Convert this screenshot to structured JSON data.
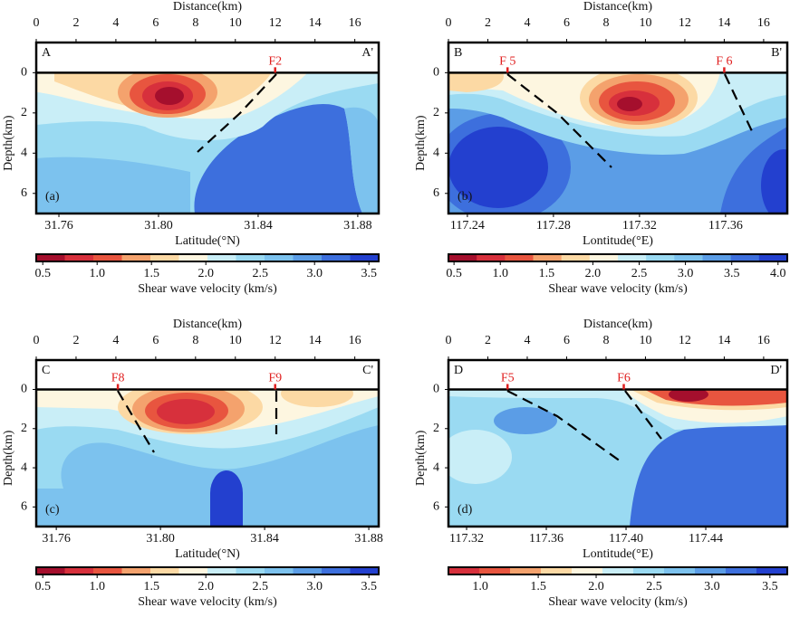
{
  "chart_data": [
    {
      "type": "contour",
      "panel_label": "(a)",
      "section_start": "A",
      "section_end": "A'",
      "top_axis_label": "Distance(km)",
      "distance_lim": [
        0,
        17.2
      ],
      "distance_ticks": [
        0,
        2,
        4,
        6,
        8,
        10,
        12,
        14,
        16
      ],
      "xlabel": "Latitude(°N)",
      "xlim": [
        31.7509,
        31.8884
      ],
      "xticks": [
        31.76,
        {
          "value": 31.8,
          "label": "31.80"
        },
        31.84,
        31.88
      ],
      "ylabel": "Depth(km)",
      "ylim": [
        -1.5,
        7
      ],
      "yticks": [
        0,
        2,
        4,
        6
      ],
      "faults": [
        {
          "name": "F2",
          "distance": 12.0
        }
      ],
      "colorbar": {
        "label": "Shear wave velocity (km/s)",
        "lim": [
          0.44,
          3.59
        ],
        "ticks": [
          0.5,
          {
            "value": 1.0,
            "label": "1.0"
          },
          1.5,
          {
            "value": 2.0,
            "label": "2.0"
          },
          2.5,
          {
            "value": 3.0,
            "label": "3.0"
          },
          3.5
        ],
        "colors": [
          "#a50f2d",
          "#d7303c",
          "#e8553f",
          "#f4a26d",
          "#fcd9a4",
          "#fdf6e0",
          "#c9eef7",
          "#9adaf2",
          "#7cc2ee",
          "#5b9de6",
          "#3d6fdd",
          "#2340cf"
        ]
      }
    },
    {
      "type": "contour",
      "panel_label": "(b)",
      "section_start": "B",
      "section_end": "B'",
      "top_axis_label": "Distance(km)",
      "distance_lim": [
        0,
        17.2
      ],
      "distance_ticks": [
        0,
        2,
        4,
        6,
        8,
        10,
        12,
        14,
        16
      ],
      "xlabel": "Lontitude(°E)",
      "xlim": [
        117.2312,
        117.3887
      ],
      "xticks": [
        117.24,
        117.28,
        117.32,
        117.36
      ],
      "ylabel": "Depth(km)",
      "ylim": [
        -1.5,
        7
      ],
      "yticks": [
        0,
        2,
        4,
        6
      ],
      "faults": [
        {
          "name": "F 5",
          "distance": 3.0
        },
        {
          "name": "F 6",
          "distance": 14.0
        }
      ],
      "colorbar": {
        "label": "Shear wave velocity (km/s)",
        "lim": [
          0.44,
          4.1
        ],
        "ticks": [
          0.5,
          {
            "value": 1.0,
            "label": "1.0"
          },
          1.5,
          {
            "value": 2.0,
            "label": "2.0"
          },
          2.5,
          {
            "value": 3.0,
            "label": "3.0"
          },
          3.5,
          {
            "value": 4.0,
            "label": "4.0"
          }
        ],
        "colors": [
          "#a50f2d",
          "#d7303c",
          "#e8553f",
          "#f4a26d",
          "#fcd9a4",
          "#fdf6e0",
          "#c9eef7",
          "#9adaf2",
          "#7cc2ee",
          "#5b9de6",
          "#3d6fdd",
          "#2340cf"
        ]
      }
    },
    {
      "type": "contour",
      "panel_label": "(c)",
      "section_start": "C",
      "section_end": "C'",
      "top_axis_label": "Distance(km)",
      "distance_lim": [
        0,
        17.2
      ],
      "distance_ticks": [
        0,
        2,
        4,
        6,
        8,
        10,
        12,
        14,
        16
      ],
      "xlabel": "Latitude(°N)",
      "xlim": [
        31.7523,
        31.8838
      ],
      "xticks": [
        31.76,
        {
          "value": 31.8,
          "label": "31.80"
        },
        31.84,
        31.88
      ],
      "ylabel": "Depth(km)",
      "ylim": [
        -1.5,
        7
      ],
      "yticks": [
        0,
        2,
        4,
        6
      ],
      "faults": [
        {
          "name": "F8",
          "distance": 4.1
        },
        {
          "name": "F9",
          "distance": 12.0
        }
      ],
      "colorbar": {
        "label": "Shear wave velocity (km/s)",
        "lim": [
          0.44,
          3.59
        ],
        "ticks": [
          0.5,
          {
            "value": 1.0,
            "label": "1.0"
          },
          1.5,
          {
            "value": 2.0,
            "label": "2.0"
          },
          2.5,
          {
            "value": 3.0,
            "label": "3.0"
          },
          3.5
        ],
        "colors": [
          "#a50f2d",
          "#d7303c",
          "#e8553f",
          "#f4a26d",
          "#fcd9a4",
          "#fdf6e0",
          "#c9eef7",
          "#9adaf2",
          "#7cc2ee",
          "#5b9de6",
          "#3d6fdd",
          "#2340cf"
        ]
      }
    },
    {
      "type": "contour",
      "panel_label": "(d)",
      "section_start": "D",
      "section_end": "D'",
      "top_axis_label": "Distance(km)",
      "distance_lim": [
        0,
        17.2
      ],
      "distance_ticks": [
        0,
        2,
        4,
        6,
        8,
        10,
        12,
        14,
        16
      ],
      "xlabel": "Lontitude(°E)",
      "xlim": [
        117.3109,
        117.4809
      ],
      "xticks": [
        117.32,
        117.36,
        {
          "value": 117.4,
          "label": "117.40"
        },
        117.44
      ],
      "ylabel": "Depth(km)",
      "ylim": [
        -1.5,
        7
      ],
      "yticks": [
        0,
        2,
        4,
        6
      ],
      "faults": [
        {
          "name": "F5",
          "distance": 3.0
        },
        {
          "name": "F6",
          "distance": 8.9
        }
      ],
      "colorbar": {
        "label": "Shear wave velocity (km/s)",
        "lim": [
          0.725,
          3.65
        ],
        "ticks": [
          {
            "value": 1.0,
            "label": "1.0"
          },
          1.5,
          {
            "value": 2.0,
            "label": "2.0"
          },
          2.5,
          {
            "value": 3.0,
            "label": "3.0"
          },
          3.5
        ],
        "colors": [
          "#d7303c",
          "#e8553f",
          "#f4a26d",
          "#fcd9a4",
          "#fdf6e0",
          "#c9eef7",
          "#9adaf2",
          "#7cc2ee",
          "#5b9de6",
          "#3d6fdd",
          "#2340cf"
        ]
      }
    }
  ]
}
